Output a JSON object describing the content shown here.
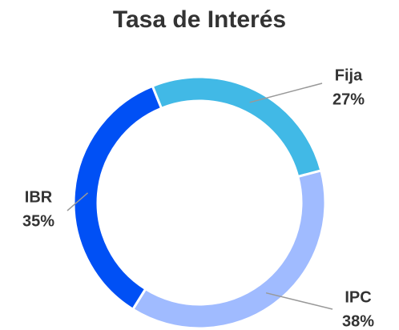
{
  "chart_data": {
    "type": "pie",
    "title": "Tasa de Interés",
    "categories": [
      "Fija",
      "IPC",
      "IBR"
    ],
    "values": [
      27,
      38,
      35
    ],
    "value_labels": [
      "27%",
      "38%",
      "35%"
    ],
    "colors": [
      "#41b9e6",
      "#a0bbff",
      "#0050f5"
    ]
  }
}
